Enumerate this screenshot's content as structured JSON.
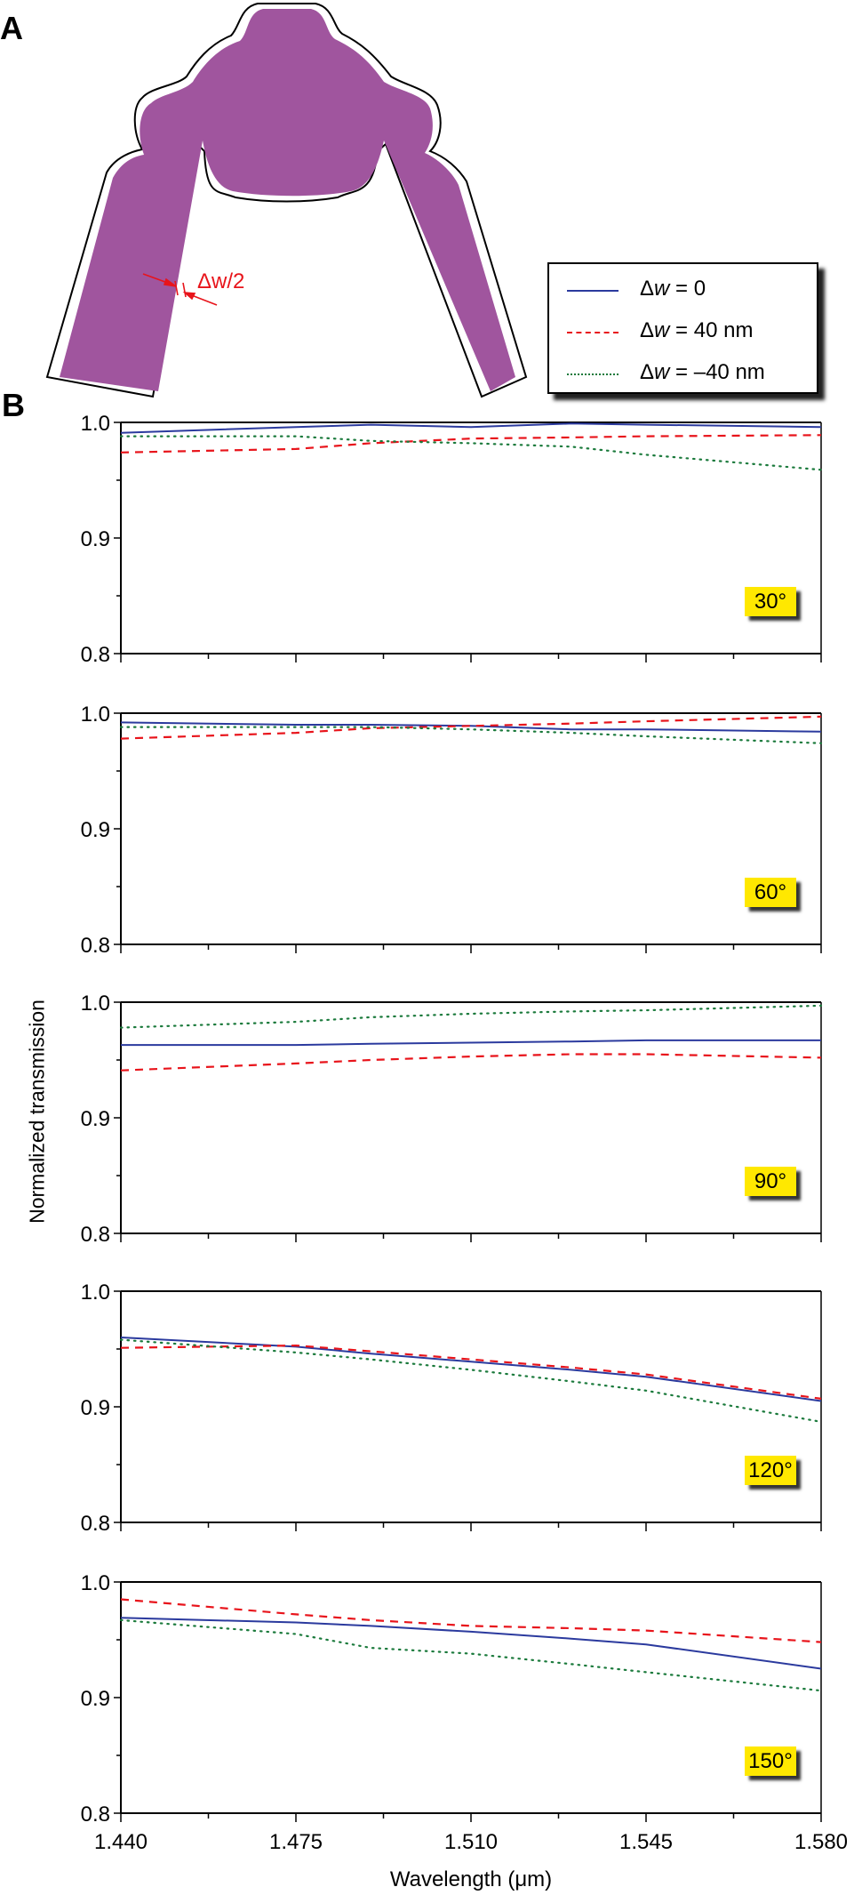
{
  "figure": {
    "panel_a_label": "A",
    "panel_b_label": "B",
    "annotation_dw": "Δw/2",
    "legend": [
      {
        "symbol": "Δ",
        "var": "w",
        "rest": " = 0",
        "color": "#2b3a9e",
        "style": "solid"
      },
      {
        "symbol": "Δ",
        "var": "w",
        "rest": " = 40 nm",
        "color": "#e8141b",
        "style": "dashed"
      },
      {
        "symbol": "Δ",
        "var": "w",
        "rest": " = –40 nm",
        "color": "#1b7a3c",
        "style": "dotted"
      }
    ],
    "ylabel": "Normalized transmission",
    "xlabel": "Wavelength (μm)",
    "colors": {
      "waveguide_fill": "#a0559e",
      "badge": "#ffe800",
      "solid": "#2b3a9e",
      "dashed": "#e8141b",
      "dotted": "#1b7a3c"
    }
  },
  "chart_data": [
    {
      "type": "line",
      "title": "30°",
      "xlabel": "Wavelength (μm)",
      "ylabel": "Normalized transmission",
      "x": [
        1.44,
        1.475,
        1.49,
        1.51,
        1.53,
        1.545,
        1.58
      ],
      "ylim": [
        0.8,
        1.0
      ],
      "xlim": [
        1.44,
        1.58
      ],
      "series": [
        {
          "name": "Δw = 0",
          "values": [
            0.991,
            0.996,
            0.998,
            0.996,
            0.999,
            0.998,
            0.996
          ]
        },
        {
          "name": "Δw = 40 nm",
          "values": [
            0.974,
            0.977,
            0.982,
            0.986,
            0.987,
            0.988,
            0.989
          ]
        },
        {
          "name": "Δw = –40 nm",
          "values": [
            0.988,
            0.988,
            0.984,
            0.982,
            0.979,
            0.972,
            0.959
          ]
        }
      ]
    },
    {
      "type": "line",
      "title": "60°",
      "xlabel": "Wavelength (μm)",
      "ylabel": "Normalized transmission",
      "x": [
        1.44,
        1.475,
        1.49,
        1.51,
        1.53,
        1.545,
        1.58
      ],
      "ylim": [
        0.8,
        1.0
      ],
      "xlim": [
        1.44,
        1.58
      ],
      "series": [
        {
          "name": "Δw = 0",
          "values": [
            0.992,
            0.99,
            0.99,
            0.989,
            0.986,
            0.986,
            0.984
          ]
        },
        {
          "name": "Δw = 40 nm",
          "values": [
            0.978,
            0.983,
            0.987,
            0.989,
            0.991,
            0.993,
            0.997
          ]
        },
        {
          "name": "Δw = –40 nm",
          "values": [
            0.988,
            0.988,
            0.988,
            0.986,
            0.983,
            0.98,
            0.974
          ]
        }
      ]
    },
    {
      "type": "line",
      "title": "90°",
      "xlabel": "Wavelength (μm)",
      "ylabel": "Normalized transmission",
      "x": [
        1.44,
        1.475,
        1.49,
        1.51,
        1.53,
        1.545,
        1.58
      ],
      "ylim": [
        0.8,
        1.0
      ],
      "xlim": [
        1.44,
        1.58
      ],
      "series": [
        {
          "name": "Δw = 0",
          "values": [
            0.963,
            0.963,
            0.964,
            0.965,
            0.966,
            0.967,
            0.967
          ]
        },
        {
          "name": "Δw = 40 nm",
          "values": [
            0.941,
            0.947,
            0.95,
            0.953,
            0.955,
            0.955,
            0.952
          ]
        },
        {
          "name": "Δw = –40 nm",
          "values": [
            0.978,
            0.983,
            0.987,
            0.99,
            0.992,
            0.993,
            0.997
          ]
        }
      ]
    },
    {
      "type": "line",
      "title": "120°",
      "xlabel": "Wavelength (μm)",
      "ylabel": "Normalized transmission",
      "x": [
        1.44,
        1.475,
        1.49,
        1.51,
        1.53,
        1.545,
        1.58
      ],
      "ylim": [
        0.8,
        1.0
      ],
      "xlim": [
        1.44,
        1.58
      ],
      "series": [
        {
          "name": "Δw = 0",
          "values": [
            0.96,
            0.952,
            0.946,
            0.939,
            0.932,
            0.926,
            0.905
          ]
        },
        {
          "name": "Δw = 40 nm",
          "values": [
            0.951,
            0.953,
            0.948,
            0.941,
            0.934,
            0.928,
            0.907
          ]
        },
        {
          "name": "Δw = –40 nm",
          "values": [
            0.958,
            0.947,
            0.941,
            0.932,
            0.922,
            0.914,
            0.887
          ]
        }
      ]
    },
    {
      "type": "line",
      "title": "150°",
      "xlabel": "Wavelength (μm)",
      "ylabel": "Normalized transmission",
      "x": [
        1.44,
        1.475,
        1.49,
        1.51,
        1.53,
        1.545,
        1.58
      ],
      "ylim": [
        0.8,
        1.0
      ],
      "xlim": [
        1.44,
        1.58
      ],
      "series": [
        {
          "name": "Δw = 0",
          "values": [
            0.969,
            0.965,
            0.962,
            0.957,
            0.951,
            0.946,
            0.925
          ]
        },
        {
          "name": "Δw = 40 nm",
          "values": [
            0.985,
            0.972,
            0.967,
            0.962,
            0.96,
            0.958,
            0.948
          ]
        },
        {
          "name": "Δw = –40 nm",
          "values": [
            0.967,
            0.955,
            0.943,
            0.938,
            0.929,
            0.922,
            0.906
          ]
        }
      ]
    }
  ],
  "axes": {
    "x_ticks": [
      "1.440",
      "1.475",
      "1.510",
      "1.545",
      "1.580"
    ],
    "y_ticks": [
      "1.0",
      "0.9",
      "0.8"
    ]
  }
}
